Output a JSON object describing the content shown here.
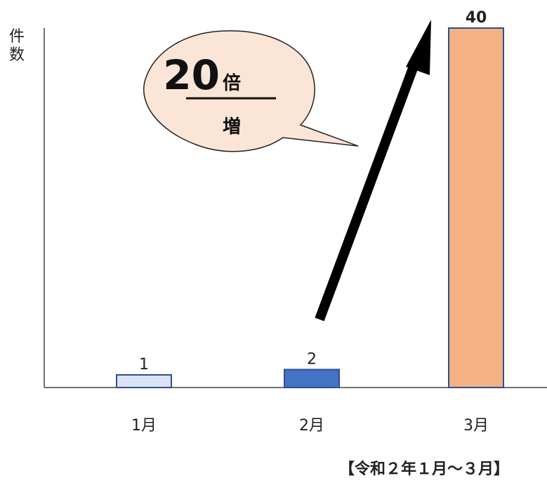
{
  "chart_data": {
    "type": "bar",
    "categories": [
      "1月",
      "2月",
      "3月"
    ],
    "values": [
      1,
      2,
      40
    ],
    "bar_colors": [
      "#dae3f3",
      "#4472c4",
      "#f4b183"
    ],
    "ylabel": "件数",
    "ylim": [
      0,
      40
    ],
    "grid": false,
    "legend": "none"
  },
  "callout": {
    "number": "20",
    "unit": "倍",
    "suffix": "増",
    "fill_color": "#fbe5d6",
    "description_arrow": "upward trend arrow"
  },
  "footer_note": "【令和２年１月～３月】"
}
